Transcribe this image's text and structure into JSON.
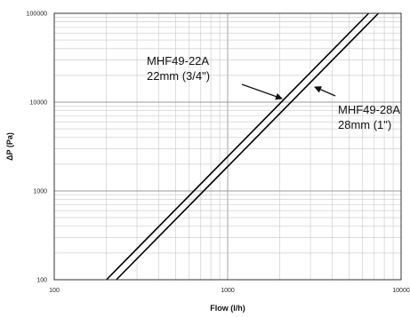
{
  "chart_data": {
    "type": "line",
    "title": "",
    "xlabel": "Flow (l/h)",
    "ylabel": "ΔP (Pa)",
    "xscale": "log",
    "yscale": "log",
    "xlim": [
      100,
      10000
    ],
    "ylim": [
      100,
      100000
    ],
    "grid": true,
    "x_ticks": [
      "100",
      "1000",
      "10000"
    ],
    "y_ticks": [
      "100",
      "1000",
      "10000",
      "100000"
    ],
    "series": [
      {
        "name": "MHF49-22A",
        "x": [
          200,
          6500
        ],
        "y": [
          100,
          100000
        ],
        "color": "#000000"
      },
      {
        "name": "MHF49-28A",
        "x": [
          228,
          7400
        ],
        "y": [
          100,
          100000
        ],
        "color": "#000000"
      }
    ],
    "annotations": [
      {
        "line1": "MHF49-22A",
        "line2": "22mm (3/4\")",
        "points_to": "MHF49-22A"
      },
      {
        "line1": "MHF49-28A",
        "line2": "28mm (1\")",
        "points_to": "MHF49-28A"
      }
    ]
  }
}
